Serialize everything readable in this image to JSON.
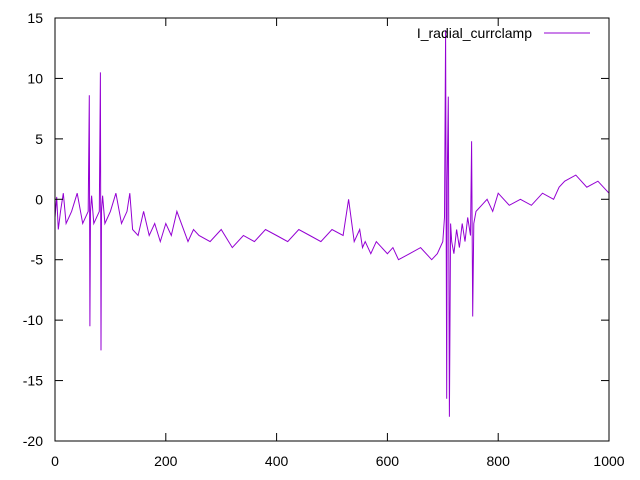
{
  "chart_data": {
    "type": "line",
    "title": "",
    "xlabel": "",
    "ylabel": "",
    "xlim": [
      0,
      1000
    ],
    "ylim": [
      -20,
      15
    ],
    "x_ticks": [
      0,
      200,
      400,
      600,
      800,
      1000
    ],
    "y_ticks": [
      -20,
      -15,
      -10,
      -5,
      0,
      5,
      10,
      15
    ],
    "grid": false,
    "legend_position": "top-right",
    "series": [
      {
        "name": "I_radial_currclamp",
        "color": "#9400d3",
        "x": [
          0,
          3,
          6,
          10,
          15,
          20,
          30,
          40,
          50,
          60,
          62,
          63,
          64,
          66,
          70,
          80,
          82,
          83,
          84,
          86,
          90,
          100,
          110,
          120,
          130,
          135,
          140,
          150,
          160,
          170,
          180,
          190,
          200,
          210,
          220,
          240,
          250,
          260,
          280,
          300,
          320,
          340,
          360,
          380,
          400,
          420,
          440,
          460,
          480,
          500,
          520,
          530,
          540,
          550,
          555,
          560,
          570,
          580,
          600,
          610,
          620,
          640,
          660,
          680,
          690,
          700,
          703,
          705,
          707,
          708,
          710,
          712,
          714,
          716,
          720,
          725,
          730,
          735,
          740,
          745,
          750,
          752,
          754,
          756,
          760,
          770,
          780,
          790,
          800,
          820,
          840,
          860,
          880,
          900,
          910,
          920,
          940,
          960,
          980,
          1000
        ],
        "y": [
          -1.5,
          0.2,
          -2.5,
          -1,
          0.5,
          -2,
          -1,
          0.5,
          -2,
          -1,
          8.6,
          -10.5,
          -1,
          0.3,
          -2,
          -1,
          10.5,
          -12.5,
          -1,
          0.3,
          -2,
          -1,
          0.5,
          -2,
          -1,
          0.5,
          -2.5,
          -3,
          -1,
          -3,
          -2,
          -3.5,
          -2,
          -3,
          -1,
          -3.5,
          -2.5,
          -3,
          -3.5,
          -2.5,
          -4,
          -3,
          -3.5,
          -2.5,
          -3,
          -3.5,
          -2.5,
          -3,
          -3.5,
          -2.5,
          -3,
          0,
          -3.5,
          -2.5,
          -4,
          -3.5,
          -4.5,
          -3.5,
          -4.5,
          -4,
          -5,
          -4.5,
          -4,
          -5,
          -4.5,
          -3.5,
          -1.5,
          14,
          -16.5,
          1.5,
          8.5,
          -18,
          -2,
          -3.5,
          -4.5,
          -2.5,
          -4,
          -2,
          -3.5,
          -1.5,
          -3,
          4.8,
          -9.7,
          -2,
          -1,
          -0.5,
          0,
          -1,
          0.5,
          -0.5,
          0,
          -0.5,
          0.5,
          0,
          1,
          1.5,
          2,
          1,
          1.5,
          0.5
        ]
      }
    ]
  }
}
